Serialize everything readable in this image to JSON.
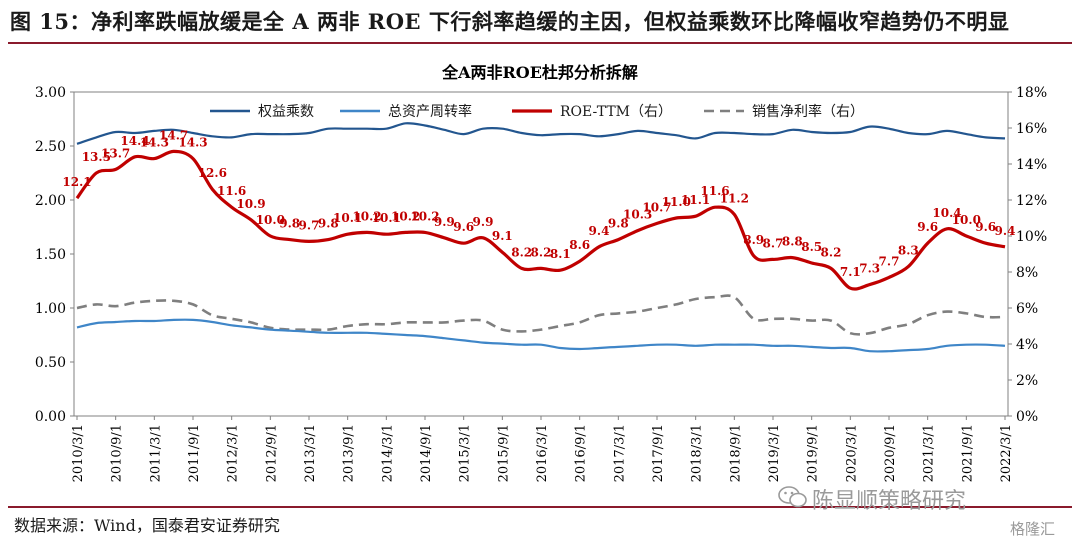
{
  "figure": {
    "title": "图 15：净利率跌幅放缓是全 A 两非 ROE 下行斜率趋缓的主因，但权益乘数环比降幅收窄趋势仍不明显",
    "source": "数据来源：Wind，国泰君安证券研究",
    "watermark": "陈显顺策略研究",
    "logo": "格隆汇"
  },
  "colors": {
    "equity_multiplier": "#23568f",
    "asset_turnover": "#3f86c8",
    "roe": "#c00000",
    "net_margin": "#7f7f7f",
    "rule": "#8a1a2c"
  },
  "chart_data": {
    "type": "line",
    "title": "全A两非ROE杜邦分析拆解",
    "x_ticks": [
      "2010/3/1",
      "2010/9/1",
      "2011/3/1",
      "2011/9/1",
      "2012/3/1",
      "2012/9/1",
      "2013/3/1",
      "2013/9/1",
      "2014/3/1",
      "2014/9/1",
      "2015/3/1",
      "2015/9/1",
      "2016/3/1",
      "2016/9/1",
      "2017/3/1",
      "2017/9/1",
      "2018/3/1",
      "2018/9/1",
      "2019/3/1",
      "2019/9/1",
      "2020/3/1",
      "2020/9/1",
      "2021/3/1",
      "2021/9/1",
      "2022/3/1"
    ],
    "x": [
      "2010/3",
      "2010/6",
      "2010/9",
      "2010/12",
      "2011/3",
      "2011/6",
      "2011/9",
      "2011/12",
      "2012/3",
      "2012/6",
      "2012/9",
      "2012/12",
      "2013/3",
      "2013/6",
      "2013/9",
      "2013/12",
      "2014/3",
      "2014/6",
      "2014/9",
      "2014/12",
      "2015/3",
      "2015/6",
      "2015/9",
      "2015/12",
      "2016/3",
      "2016/6",
      "2016/9",
      "2016/12",
      "2017/3",
      "2017/6",
      "2017/9",
      "2017/12",
      "2018/3",
      "2018/6",
      "2018/9",
      "2018/12",
      "2019/3",
      "2019/6",
      "2019/9",
      "2019/12",
      "2020/3",
      "2020/6",
      "2020/9",
      "2020/12",
      "2021/3",
      "2021/6",
      "2021/9",
      "2021/12",
      "2022/3"
    ],
    "y_left": {
      "min": 0,
      "max": 3,
      "ticks": [
        "0.00",
        "0.50",
        "1.00",
        "1.50",
        "2.00",
        "2.50",
        "3.00"
      ]
    },
    "y_right": {
      "min": 0,
      "max": 18,
      "ticks": [
        "0%",
        "2%",
        "4%",
        "6%",
        "8%",
        "10%",
        "12%",
        "14%",
        "16%",
        "18%"
      ]
    },
    "legend_position": "top",
    "series": [
      {
        "name": "权益乘数",
        "axis": "left",
        "color_key": "equity_multiplier",
        "values": [
          2.52,
          2.58,
          2.63,
          2.62,
          2.64,
          2.65,
          2.62,
          2.59,
          2.58,
          2.61,
          2.61,
          2.61,
          2.62,
          2.66,
          2.66,
          2.66,
          2.66,
          2.71,
          2.69,
          2.65,
          2.61,
          2.66,
          2.66,
          2.62,
          2.6,
          2.61,
          2.61,
          2.59,
          2.61,
          2.64,
          2.62,
          2.6,
          2.57,
          2.62,
          2.62,
          2.61,
          2.61,
          2.65,
          2.63,
          2.62,
          2.63,
          2.68,
          2.66,
          2.62,
          2.61,
          2.64,
          2.61,
          2.58,
          2.57
        ]
      },
      {
        "name": "总资产周转率",
        "axis": "left",
        "color_key": "asset_turnover",
        "values": [
          0.82,
          0.86,
          0.87,
          0.88,
          0.88,
          0.89,
          0.89,
          0.87,
          0.84,
          0.82,
          0.8,
          0.79,
          0.78,
          0.77,
          0.77,
          0.77,
          0.76,
          0.75,
          0.74,
          0.72,
          0.7,
          0.68,
          0.67,
          0.66,
          0.66,
          0.63,
          0.62,
          0.63,
          0.64,
          0.65,
          0.66,
          0.66,
          0.65,
          0.66,
          0.66,
          0.66,
          0.65,
          0.65,
          0.64,
          0.63,
          0.63,
          0.6,
          0.6,
          0.61,
          0.62,
          0.65,
          0.66,
          0.66,
          0.65
        ]
      },
      {
        "name": "ROE-TTM（右）",
        "axis": "right",
        "color_key": "roe",
        "values": [
          12.1,
          13.5,
          13.7,
          14.4,
          14.3,
          14.7,
          14.3,
          12.6,
          11.6,
          10.9,
          10.0,
          9.8,
          9.7,
          9.8,
          10.1,
          10.2,
          10.1,
          10.2,
          10.2,
          9.9,
          9.6,
          9.9,
          9.1,
          8.2,
          8.2,
          8.1,
          8.6,
          9.4,
          9.8,
          10.3,
          10.7,
          11.0,
          11.1,
          11.6,
          11.2,
          8.9,
          8.7,
          8.8,
          8.5,
          8.2,
          7.1,
          7.3,
          7.7,
          8.3,
          9.6,
          10.4,
          10.0,
          9.6,
          9.4
        ],
        "labels": [
          "12.1",
          "13.5",
          "13.7",
          "14.4",
          "14.3",
          "14.7",
          "14.3",
          "12.6",
          "11.6",
          "10.9",
          "10.0",
          "9.8",
          "9.7",
          "9.8",
          "10.1",
          "10.2",
          "10.1",
          "10.2",
          "10.2",
          "9.9",
          "9.6",
          "9.9",
          "9.1",
          "8.2",
          "8.2",
          "8.1",
          "8.6",
          "9.4",
          "9.8",
          "10.3",
          "10.7",
          "11.0",
          "11.1",
          "11.6",
          "11.2",
          "8.9",
          "8.7",
          "8.8",
          "8.5",
          "8.2",
          "7.1",
          "7.3",
          "7.7",
          "8.3",
          "9.6",
          "10.4",
          "10.0",
          "9.6",
          "9.4"
        ]
      },
      {
        "name": "销售净利率（右）",
        "axis": "right",
        "color_key": "net_margin",
        "dashed": true,
        "values": [
          6.0,
          6.2,
          6.1,
          6.3,
          6.4,
          6.4,
          6.2,
          5.6,
          5.4,
          5.2,
          4.9,
          4.8,
          4.8,
          4.8,
          5.0,
          5.1,
          5.1,
          5.2,
          5.2,
          5.2,
          5.3,
          5.3,
          4.8,
          4.7,
          4.8,
          5.0,
          5.2,
          5.6,
          5.7,
          5.8,
          6.0,
          6.2,
          6.5,
          6.6,
          6.6,
          5.4,
          5.4,
          5.4,
          5.3,
          5.3,
          4.6,
          4.6,
          4.9,
          5.1,
          5.6,
          5.8,
          5.7,
          5.5,
          5.5
        ]
      }
    ]
  }
}
